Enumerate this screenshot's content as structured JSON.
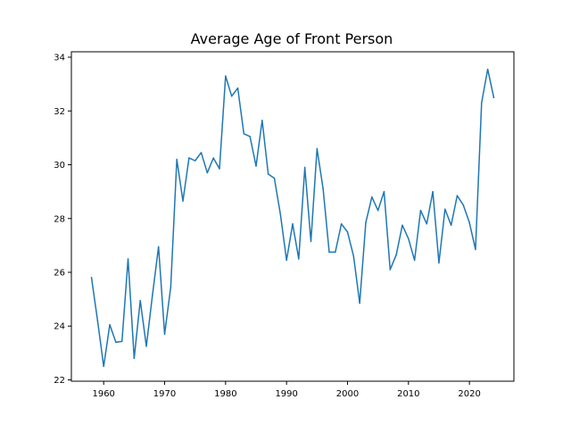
{
  "chart_data": {
    "type": "line",
    "title": "Average Age of Front Person",
    "xlabel": "",
    "ylabel": "",
    "xlim": [
      1954.7,
      2027.3
    ],
    "ylim": [
      21.95,
      34.2
    ],
    "x_ticks": [
      1960,
      1970,
      1980,
      1990,
      2000,
      2010,
      2020
    ],
    "y_ticks": [
      22,
      24,
      26,
      28,
      30,
      32,
      34
    ],
    "grid": false,
    "legend": "none",
    "line_color": "#1f77b4",
    "series": [
      {
        "x": [
          1958,
          1959,
          1960,
          1961,
          1962,
          1963,
          1964,
          1965,
          1966,
          1967,
          1968,
          1969,
          1970,
          1971,
          1972,
          1973,
          1974,
          1975,
          1976,
          1977,
          1978,
          1979,
          1980,
          1981,
          1982,
          1983,
          1984,
          1985,
          1986,
          1987,
          1988,
          1989,
          1990,
          1991,
          1992,
          1993,
          1994,
          1995,
          1996,
          1997,
          1998,
          1999,
          2000,
          2001,
          2002,
          2003,
          2004,
          2005,
          2006,
          2007,
          2008,
          2009,
          2010,
          2011,
          2012,
          2013,
          2014,
          2015,
          2016,
          2017,
          2018,
          2019,
          2020,
          2021,
          2022,
          2023,
          2024
        ],
        "values": [
          25.8,
          24.2,
          22.5,
          24.05,
          23.4,
          23.43,
          26.5,
          22.8,
          24.95,
          23.25,
          25.15,
          26.95,
          23.7,
          25.45,
          30.2,
          28.65,
          30.25,
          30.15,
          30.45,
          29.7,
          30.25,
          29.85,
          33.3,
          32.55,
          32.85,
          31.15,
          31.05,
          29.95,
          31.65,
          29.65,
          29.5,
          28.15,
          26.45,
          27.8,
          26.5,
          29.9,
          27.15,
          30.6,
          29.1,
          26.75,
          26.75,
          27.8,
          27.5,
          26.6,
          24.85,
          27.85,
          28.8,
          28.3,
          29.0,
          26.1,
          26.65,
          27.75,
          27.25,
          26.45,
          28.3,
          27.8,
          29.0,
          26.35,
          28.35,
          27.75,
          28.85,
          28.5,
          27.85,
          26.85,
          32.3,
          33.55,
          32.5
        ]
      }
    ]
  }
}
